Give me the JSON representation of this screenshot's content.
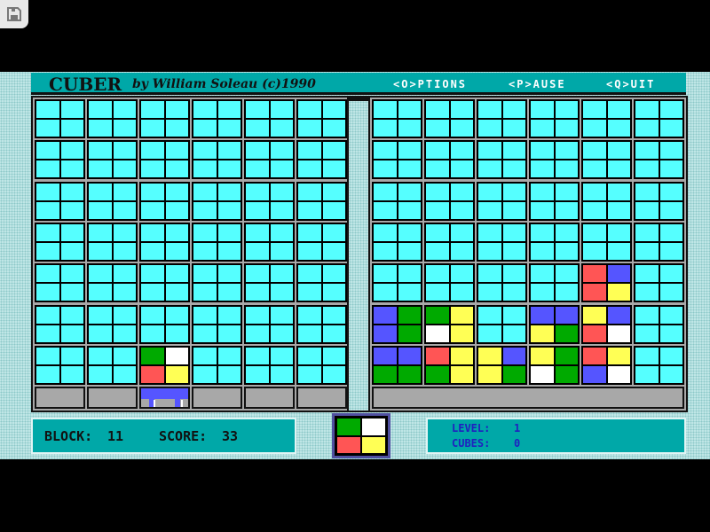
{
  "header": {
    "title": "CUBER",
    "byline": "by William Soleau (c)1990",
    "menu": [
      "<O>PTIONS",
      "<P>AUSE",
      "<Q>UIT"
    ]
  },
  "colors": {
    "C": "#55ffff",
    "R": "#ff5555",
    "B": "#5555ff",
    "Y": "#ffff55",
    "G": "#00aa00",
    "W": "#ffffff"
  },
  "left_board": [
    [
      "CCCC",
      "CCCC",
      "CCCC",
      "CCCC",
      "CCCC",
      "CCCC"
    ],
    [
      "CCCC",
      "CCCC",
      "CCCC",
      "CCCC",
      "CCCC",
      "CCCC"
    ],
    [
      "CCCC",
      "CCCC",
      "CCCC",
      "CCCC",
      "CCCC",
      "CCCC"
    ],
    [
      "CCCC",
      "CCCC",
      "CCCC",
      "CCCC",
      "CCCC",
      "CCCC"
    ],
    [
      "CCCC",
      "CCCC",
      "CCCC",
      "CCCC",
      "CCCC",
      "CCCC"
    ],
    [
      "CCCC",
      "CCCC",
      "CCCC",
      "CCCC",
      "CCCC",
      "CCCC"
    ],
    [
      "CCCC",
      "CCCC",
      "GWRY",
      "CCCC",
      "CCCC",
      "CCCC"
    ]
  ],
  "launcher_column": 3,
  "right_board": [
    [
      "CCCC",
      "CCCC",
      "CCCC",
      "CCCC",
      "CCCC",
      "CCCC"
    ],
    [
      "CCCC",
      "CCCC",
      "CCCC",
      "CCCC",
      "CCCC",
      "CCCC"
    ],
    [
      "CCCC",
      "CCCC",
      "CCCC",
      "CCCC",
      "CCCC",
      "CCCC"
    ],
    [
      "CCCC",
      "CCCC",
      "CCCC",
      "CCCC",
      "CCCC",
      "CCCC"
    ],
    [
      "CCCC",
      "CCCC",
      "CCCC",
      "CCCC",
      "RBRY",
      "CCCC"
    ],
    [
      "BGBG",
      "GYWY",
      "CCCC",
      "BBYG",
      "YBRW",
      "CCCC"
    ],
    [
      "BBGG",
      "RYGY",
      "YBYG",
      "YGWG",
      "RYBW",
      "CCCC"
    ]
  ],
  "next_piece": "GWRY",
  "stats": {
    "block_label": "BLOCK:",
    "block": "11",
    "score_label": "SCORE:",
    "score": "33",
    "level_label": "LEVEL:",
    "level": "1",
    "cubes_label": "CUBES:",
    "cubes": "0"
  }
}
